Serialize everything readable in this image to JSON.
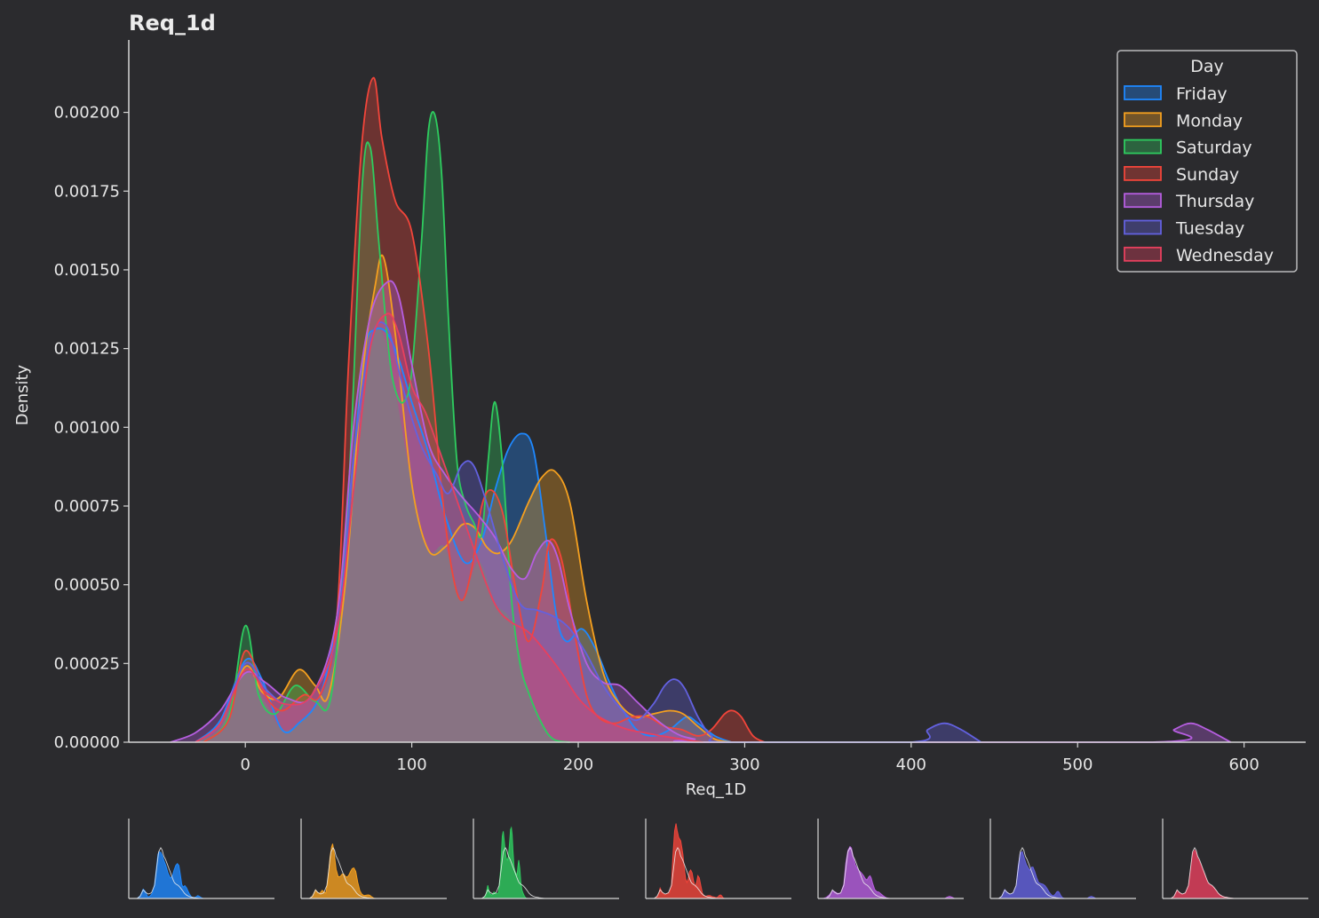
{
  "chart_data": {
    "type": "area",
    "subtype": "kde",
    "title": "Req_1d",
    "xlabel": "Req_1D",
    "ylabel": "Density",
    "xlim": [
      -70,
      637
    ],
    "ylim": [
      0,
      0.00223
    ],
    "xticks": [
      0,
      100,
      200,
      300,
      400,
      500,
      600
    ],
    "xtick_labels": [
      "0",
      "100",
      "200",
      "300",
      "400",
      "500",
      "600"
    ],
    "yticks": [
      0,
      0.00025,
      0.0005,
      0.00075,
      0.001,
      0.00125,
      0.0015,
      0.00175,
      0.002
    ],
    "ytick_labels": [
      "0.00000",
      "0.00025",
      "0.00050",
      "0.00075",
      "0.00100",
      "0.00125",
      "0.00150",
      "0.00175",
      "0.00200"
    ],
    "grid": false,
    "legend": {
      "title": "Day",
      "placement": "top-right"
    },
    "overlap_fill": "#7d7c81",
    "series": [
      {
        "name": "Friday",
        "color": "#1e88ff",
        "x": [
          -30,
          -15,
          0,
          10,
          22,
          32,
          45,
          55,
          65,
          72,
          78,
          85,
          92,
          100,
          110,
          120,
          132,
          142,
          150,
          158,
          166,
          173,
          180,
          187,
          193,
          202,
          210,
          218,
          225,
          235,
          245,
          255,
          265,
          272,
          282,
          292
        ],
        "y": [
          0,
          7e-05,
          0.00026,
          0.0002,
          4e-05,
          6e-05,
          0.00015,
          0.0004,
          0.0009,
          0.00125,
          0.00131,
          0.0013,
          0.00122,
          0.00108,
          0.00092,
          0.00072,
          0.00057,
          0.00064,
          0.0008,
          0.00093,
          0.00098,
          0.00093,
          0.00068,
          0.0004,
          0.00032,
          0.00036,
          0.0003,
          0.0002,
          0.00012,
          4e-05,
          2e-05,
          4e-05,
          8e-05,
          6e-05,
          2e-05,
          0
        ]
      },
      {
        "name": "Monday",
        "color": "#f5a01f",
        "x": [
          -30,
          -15,
          0,
          10,
          20,
          32,
          42,
          50,
          60,
          70,
          78,
          83,
          90,
          100,
          110,
          120,
          130,
          138,
          145,
          152,
          160,
          170,
          178,
          186,
          195,
          205,
          215,
          225,
          235,
          245,
          255,
          263,
          272,
          282,
          292
        ],
        "y": [
          0,
          6e-05,
          0.00024,
          0.00016,
          0.00014,
          0.00023,
          0.00018,
          0.00015,
          0.0005,
          0.00115,
          0.00145,
          0.00154,
          0.0013,
          0.00082,
          0.00061,
          0.00062,
          0.00069,
          0.00068,
          0.00062,
          0.0006,
          0.00064,
          0.00076,
          0.00084,
          0.00086,
          0.00076,
          0.00045,
          0.00022,
          0.00012,
          8e-05,
          9e-05,
          0.0001,
          9e-05,
          5e-05,
          1e-05,
          0
        ]
      },
      {
        "name": "Saturday",
        "color": "#2ecc5f",
        "x": [
          -25,
          -10,
          0,
          8,
          18,
          30,
          42,
          52,
          62,
          70,
          75,
          80,
          86,
          90,
          95,
          100,
          106,
          110,
          114,
          118,
          122,
          127,
          132,
          137,
          142,
          146,
          150,
          155,
          160,
          165,
          170,
          178,
          185,
          195
        ],
        "y": [
          0,
          8e-05,
          0.00037,
          0.00015,
          9e-05,
          0.00018,
          0.00013,
          0.00016,
          0.0008,
          0.00175,
          0.00189,
          0.0016,
          0.00125,
          0.00112,
          0.00108,
          0.00118,
          0.0016,
          0.00194,
          0.00199,
          0.0018,
          0.00135,
          0.0009,
          0.00076,
          0.0007,
          0.00066,
          0.0009,
          0.00108,
          0.00085,
          0.00045,
          0.00025,
          0.00016,
          6e-05,
          1e-05,
          0
        ]
      },
      {
        "name": "Sunday",
        "color": "#f2453a",
        "x": [
          -25,
          -10,
          0,
          12,
          22,
          35,
          45,
          55,
          62,
          70,
          77,
          82,
          90,
          100,
          110,
          118,
          124,
          130,
          136,
          142,
          148,
          155,
          162,
          170,
          178,
          183,
          190,
          198,
          205,
          212,
          222,
          232,
          242,
          252,
          262,
          272,
          280,
          288,
          293,
          298,
          305,
          312
        ],
        "y": [
          0,
          7e-05,
          0.00029,
          0.00015,
          0.0001,
          0.00015,
          0.00015,
          0.0004,
          0.0012,
          0.0019,
          0.00211,
          0.00192,
          0.00172,
          0.00162,
          0.00125,
          0.0008,
          0.00055,
          0.00045,
          0.00055,
          0.00075,
          0.0008,
          0.00072,
          0.0005,
          0.00032,
          0.00048,
          0.00064,
          0.00058,
          0.00034,
          0.00015,
          8e-05,
          6e-05,
          8e-05,
          8e-05,
          5e-05,
          4e-05,
          2e-05,
          4e-05,
          9e-05,
          0.0001,
          8e-05,
          2e-05,
          0
        ]
      },
      {
        "name": "Thursday",
        "color": "#b65ee0",
        "x": [
          -45,
          -30,
          -15,
          0,
          12,
          25,
          40,
          55,
          65,
          75,
          85,
          92,
          100,
          110,
          120,
          130,
          140,
          150,
          160,
          168,
          175,
          182,
          188,
          195,
          205,
          215,
          225,
          235,
          245,
          255,
          262,
          270,
          280,
          545,
          558,
          568,
          578,
          592
        ],
        "y": [
          0,
          3e-05,
          0.0001,
          0.00022,
          0.00019,
          0.00014,
          0.00015,
          0.0004,
          0.001,
          0.00135,
          0.00146,
          0.00142,
          0.0012,
          0.00095,
          0.00085,
          0.00078,
          0.00072,
          0.00065,
          0.00055,
          0.00052,
          0.0006,
          0.00064,
          0.00058,
          0.00042,
          0.00025,
          0.00019,
          0.00018,
          0.00013,
          8e-05,
          4e-05,
          2e-05,
          1e-05,
          0,
          0,
          4e-05,
          6e-05,
          4e-05,
          0
        ]
      },
      {
        "name": "Tuesday",
        "color": "#6361e0",
        "x": [
          -30,
          -15,
          0,
          12,
          25,
          40,
          55,
          65,
          75,
          85,
          95,
          105,
          115,
          122,
          130,
          137,
          145,
          155,
          165,
          175,
          185,
          195,
          205,
          215,
          225,
          235,
          245,
          252,
          258,
          264,
          272,
          280,
          290,
          400,
          410,
          420,
          430,
          442
        ],
        "y": [
          0,
          6e-05,
          0.00025,
          0.00017,
          0.00012,
          0.00015,
          0.00035,
          0.0009,
          0.00127,
          0.00132,
          0.00112,
          0.00095,
          0.00085,
          0.00079,
          0.00088,
          0.00088,
          0.00076,
          0.00058,
          0.00044,
          0.00042,
          0.0004,
          0.00036,
          0.00028,
          0.00018,
          0.00011,
          7e-05,
          0.00012,
          0.00018,
          0.0002,
          0.00017,
          8e-05,
          2e-05,
          0,
          0,
          4e-05,
          6e-05,
          4e-05,
          0
        ]
      },
      {
        "name": "Wednesday",
        "color": "#e8405e",
        "x": [
          -30,
          -15,
          0,
          12,
          25,
          40,
          55,
          65,
          75,
          85,
          92,
          100,
          108,
          115,
          125,
          135,
          145,
          152,
          160,
          170,
          180,
          190,
          200,
          210,
          220,
          230,
          240,
          250,
          262,
          275
        ],
        "y": [
          0,
          6e-05,
          0.00023,
          0.00016,
          0.00012,
          0.00015,
          0.00035,
          0.0008,
          0.00125,
          0.00136,
          0.0013,
          0.00113,
          0.00105,
          0.00095,
          0.0008,
          0.00065,
          0.0005,
          0.00042,
          0.00038,
          0.00035,
          0.00029,
          0.00022,
          0.00014,
          9e-05,
          6e-05,
          4e-05,
          3e-05,
          2e-05,
          1e-05,
          0
        ]
      }
    ]
  }
}
